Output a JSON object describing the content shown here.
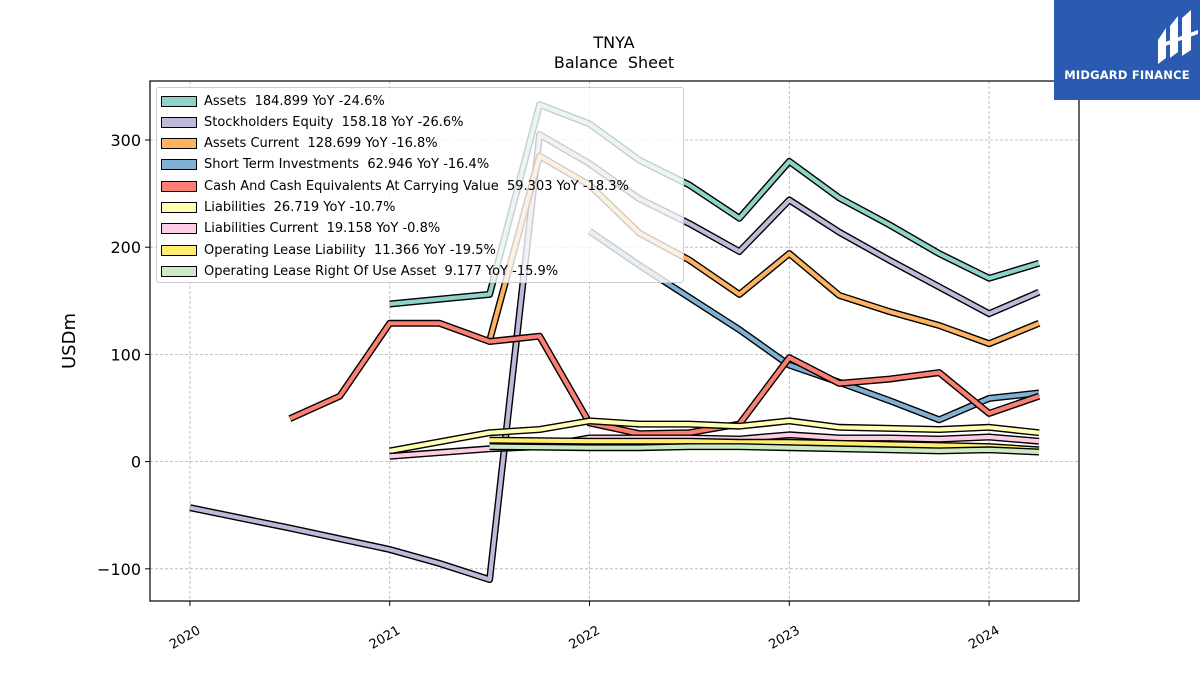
{
  "chart_data": {
    "type": "line",
    "title": "TNYA",
    "subtitle": "Balance  Sheet",
    "ylabel": "USDm",
    "xlabel": "",
    "xlim": [
      2019.8,
      2024.45
    ],
    "ylim": [
      -130,
      355
    ],
    "yticks": [
      -100,
      0,
      100,
      200,
      300
    ],
    "ytick_labels": [
      "−100",
      "0",
      "100",
      "200",
      "300"
    ],
    "xticks": [
      2020,
      2021,
      2022,
      2023,
      2024
    ],
    "xtick_labels": [
      "2020",
      "2021",
      "2022",
      "2023",
      "2024"
    ],
    "grid": true,
    "legend_position": "top-left",
    "series": [
      {
        "name": "Assets  184.899 YoY -24.6%",
        "color": "#8dd3c7",
        "points": [
          [
            2021.0,
            147
          ],
          [
            2021.5,
            156
          ],
          [
            2021.75,
            333
          ],
          [
            2022.0,
            315
          ],
          [
            2022.25,
            281
          ],
          [
            2022.5,
            258
          ],
          [
            2022.75,
            227
          ],
          [
            2023.0,
            280
          ],
          [
            2023.25,
            246
          ],
          [
            2023.5,
            221
          ],
          [
            2023.75,
            194
          ],
          [
            2024.0,
            171
          ],
          [
            2024.25,
            185
          ]
        ]
      },
      {
        "name": "Stockholders Equity  158.18 YoY -26.6%",
        "color": "#bebada",
        "points": [
          [
            2020.0,
            -43
          ],
          [
            2020.5,
            -62
          ],
          [
            2021.0,
            -82
          ],
          [
            2021.25,
            -95
          ],
          [
            2021.5,
            -110
          ],
          [
            2021.75,
            305
          ],
          [
            2022.0,
            278
          ],
          [
            2022.25,
            245
          ],
          [
            2022.5,
            222
          ],
          [
            2022.75,
            196
          ],
          [
            2023.0,
            244
          ],
          [
            2023.25,
            214
          ],
          [
            2023.5,
            188
          ],
          [
            2023.75,
            163
          ],
          [
            2024.0,
            138
          ],
          [
            2024.25,
            158
          ]
        ]
      },
      {
        "name": "Assets Current  128.699 YoY -16.8%",
        "color": "#fdb462",
        "points": [
          [
            2021.5,
            113
          ],
          [
            2021.75,
            285
          ],
          [
            2022.0,
            258
          ],
          [
            2022.25,
            213
          ],
          [
            2022.5,
            188
          ],
          [
            2022.75,
            156
          ],
          [
            2023.0,
            194
          ],
          [
            2023.25,
            155
          ],
          [
            2023.5,
            140
          ],
          [
            2023.75,
            127
          ],
          [
            2024.0,
            110
          ],
          [
            2024.25,
            129
          ]
        ]
      },
      {
        "name": "Short Term Investments  62.946 YoY -16.4%",
        "color": "#80b1d3",
        "points": [
          [
            2022.0,
            215
          ],
          [
            2022.25,
            183
          ],
          [
            2022.75,
            123
          ],
          [
            2023.0,
            90
          ],
          [
            2023.25,
            74
          ],
          [
            2023.5,
            57
          ],
          [
            2023.75,
            39
          ],
          [
            2024.0,
            59
          ],
          [
            2024.25,
            64
          ]
        ]
      },
      {
        "name": "Cash And Cash Equivalents At Carrying Value  59.303 YoY -18.3%",
        "color": "#fb8072",
        "points": [
          [
            2020.5,
            40
          ],
          [
            2020.75,
            61
          ],
          [
            2021.0,
            129
          ],
          [
            2021.25,
            129
          ],
          [
            2021.5,
            112
          ],
          [
            2021.75,
            117
          ],
          [
            2022.0,
            36
          ],
          [
            2022.25,
            26
          ],
          [
            2022.5,
            27
          ],
          [
            2022.75,
            35
          ],
          [
            2023.0,
            97
          ],
          [
            2023.25,
            73
          ],
          [
            2023.5,
            77
          ],
          [
            2023.75,
            83
          ],
          [
            2024.0,
            45
          ],
          [
            2024.25,
            61
          ]
        ]
      },
      {
        "name": "Liabilities  26.719 YoY -10.7%",
        "color": "#ffffb3",
        "points": [
          [
            2021.0,
            10
          ],
          [
            2021.5,
            27
          ],
          [
            2021.75,
            30
          ],
          [
            2022.0,
            38
          ],
          [
            2022.25,
            35
          ],
          [
            2022.5,
            35
          ],
          [
            2022.75,
            33
          ],
          [
            2023.0,
            38
          ],
          [
            2023.25,
            32
          ],
          [
            2023.5,
            31
          ],
          [
            2023.75,
            30
          ],
          [
            2024.0,
            32
          ],
          [
            2024.25,
            27
          ]
        ]
      },
      {
        "name": "Liabilities Current  19.158 YoY -0.8%",
        "color": "#fccde5",
        "points": [
          [
            2021.0,
            5
          ],
          [
            2021.5,
            12
          ],
          [
            2021.75,
            14
          ],
          [
            2022.0,
            22
          ],
          [
            2022.25,
            22
          ],
          [
            2022.5,
            22
          ],
          [
            2022.75,
            21
          ],
          [
            2023.0,
            25
          ],
          [
            2023.25,
            22
          ],
          [
            2023.5,
            22
          ],
          [
            2023.75,
            21
          ],
          [
            2024.0,
            23
          ],
          [
            2024.25,
            19
          ]
        ]
      },
      {
        "name": "Operating Lease Liability  11.366 YoY -19.5%",
        "color": "#ffed6f",
        "points": [
          [
            2021.5,
            20
          ],
          [
            2022.0,
            19
          ],
          [
            2022.25,
            19
          ],
          [
            2022.5,
            19
          ],
          [
            2022.75,
            18
          ],
          [
            2023.0,
            18
          ],
          [
            2023.25,
            17
          ],
          [
            2023.5,
            16
          ],
          [
            2023.75,
            15
          ],
          [
            2024.0,
            14
          ],
          [
            2024.25,
            11
          ]
        ]
      },
      {
        "name": "Operating Lease Right Of Use Asset  9.177 YoY -15.9%",
        "color": "#ccebc5",
        "points": [
          [
            2021.5,
            14
          ],
          [
            2022.0,
            13
          ],
          [
            2022.25,
            13
          ],
          [
            2022.5,
            14
          ],
          [
            2022.75,
            14
          ],
          [
            2023.0,
            13
          ],
          [
            2023.25,
            12
          ],
          [
            2023.5,
            11
          ],
          [
            2023.75,
            10
          ],
          [
            2024.0,
            11
          ],
          [
            2024.25,
            9
          ]
        ]
      }
    ]
  },
  "branding": {
    "logo_text": "MIDGARD FINANCE",
    "logo_bg_color": "#2b5bb0",
    "logo_icon": "midgard-logo-icon"
  }
}
